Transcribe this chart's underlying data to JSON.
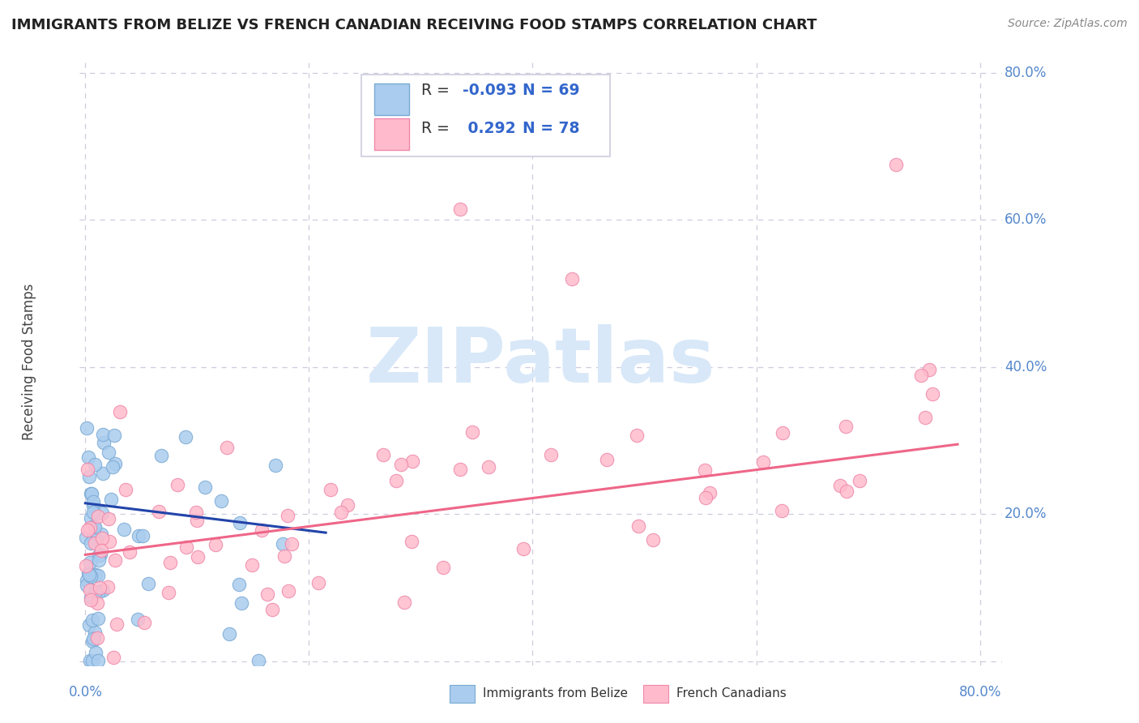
{
  "title": "IMMIGRANTS FROM BELIZE VS FRENCH CANADIAN RECEIVING FOOD STAMPS CORRELATION CHART",
  "source": "Source: ZipAtlas.com",
  "ylabel": "Receiving Food Stamps",
  "legend_label1": "Immigrants from Belize",
  "legend_label2": "French Canadians",
  "legend_R1": "-0.093",
  "legend_N1": "69",
  "legend_R2": "0.292",
  "legend_N2": "78",
  "blue_color": "#7AAAD4",
  "blue_face": "#AACCEE",
  "pink_color": "#EE88AA",
  "pink_face": "#FFBBCC",
  "blue_line_color": "#2244AA",
  "pink_line_color": "#EE6688",
  "background_color": "#FFFFFF",
  "grid_color": "#CCCCDD",
  "watermark_color": "#D8E8F8",
  "title_color": "#222222",
  "source_color": "#888888",
  "axis_label_color": "#5588CC",
  "ylabel_color": "#444444"
}
